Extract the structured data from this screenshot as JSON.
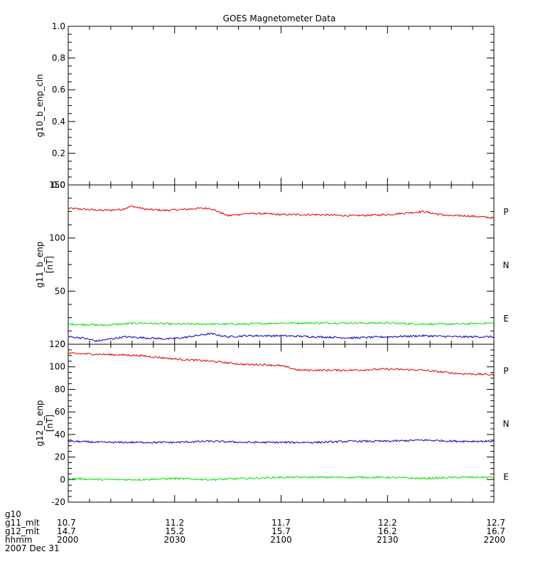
{
  "title": "GOES Magnetometer Data",
  "colors": {
    "P": "#e00000",
    "N": "#00e000",
    "E": "#0000c0",
    "axis": "#000000"
  },
  "chart_data": [
    {
      "type": "line",
      "ylabel": "g10_b_enp_cln",
      "yunit": "",
      "ylim": [
        0.0,
        1.0
      ],
      "yticks": [
        "0.0",
        "0.2",
        "0.4",
        "0.6",
        "0.8",
        "1.0"
      ],
      "ytick_values": [
        0.0,
        0.2,
        0.4,
        0.6,
        0.8,
        1.0
      ],
      "xlim": [
        0,
        120
      ],
      "series": []
    },
    {
      "type": "line",
      "ylabel": "g11_b_enp",
      "yunit": "[nT]",
      "ylim": [
        0,
        150
      ],
      "yticks": [
        "0",
        "50",
        "100",
        "150"
      ],
      "ytick_values": [
        0,
        50,
        100,
        150
      ],
      "xlim": [
        0,
        120
      ],
      "series": [
        {
          "name": "P",
          "color": "#e00000",
          "x": [
            0,
            5,
            10,
            15,
            18,
            22,
            27,
            33,
            37,
            40,
            45,
            50,
            55,
            60,
            70,
            80,
            90,
            100,
            105,
            108,
            112,
            120
          ],
          "values": [
            128,
            127,
            126,
            127,
            130,
            127,
            126,
            127,
            128,
            128,
            121,
            123,
            123,
            122,
            122,
            121,
            122,
            125,
            122,
            121,
            121,
            119
          ]
        },
        {
          "name": "N",
          "color": "#00e000",
          "x": [
            0,
            10,
            20,
            30,
            40,
            50,
            60,
            70,
            80,
            90,
            100,
            110,
            120
          ],
          "values": [
            19,
            18,
            20,
            19,
            19,
            19,
            20,
            20,
            20,
            20,
            19,
            19,
            20
          ]
        },
        {
          "name": "E",
          "color": "#0000c0",
          "x": [
            0,
            4,
            8,
            12,
            16,
            22,
            28,
            32,
            36,
            40,
            45,
            50,
            60,
            70,
            80,
            90,
            100,
            110,
            120
          ],
          "values": [
            7,
            6,
            3,
            5,
            7,
            6,
            5,
            6,
            8,
            10,
            7,
            8,
            8,
            7,
            6,
            7,
            8,
            7,
            7
          ]
        }
      ],
      "series_labels": [
        "P",
        "N",
        "E"
      ]
    },
    {
      "type": "line",
      "ylabel": "g12_b_enp",
      "yunit": "[nT]",
      "ylim": [
        -20,
        120
      ],
      "yticks": [
        "-20",
        "0",
        "20",
        "40",
        "60",
        "80",
        "100",
        "120"
      ],
      "ytick_values": [
        -20,
        0,
        20,
        40,
        60,
        80,
        100,
        120
      ],
      "xlim": [
        0,
        120
      ],
      "series": [
        {
          "name": "P",
          "color": "#e00000",
          "x": [
            0,
            10,
            20,
            30,
            40,
            50,
            55,
            60,
            65,
            70,
            80,
            90,
            100,
            110,
            120
          ],
          "values": [
            112,
            111,
            110,
            107,
            105,
            102,
            102,
            101,
            97,
            97,
            97,
            98,
            97,
            94,
            93
          ]
        },
        {
          "name": "N",
          "color": "#00e000",
          "x": [
            0,
            10,
            20,
            30,
            40,
            50,
            60,
            70,
            80,
            90,
            100,
            110,
            120
          ],
          "values": [
            1,
            0,
            0,
            1,
            0,
            1,
            2,
            2,
            2,
            2,
            1,
            2,
            2
          ]
        },
        {
          "name": "E",
          "color": "#0000c0",
          "x": [
            0,
            10,
            20,
            30,
            40,
            50,
            60,
            70,
            80,
            90,
            100,
            110,
            120
          ],
          "values": [
            34,
            33,
            33,
            33,
            34,
            33,
            33,
            33,
            34,
            34,
            35,
            34,
            34
          ]
        }
      ],
      "series_labels": [
        "P",
        "N",
        "E"
      ]
    }
  ],
  "x_axis": {
    "tick_positions": [
      0,
      30,
      60,
      90,
      120
    ],
    "minor_step": 6,
    "rows": [
      {
        "label": "g10",
        "values": [
          "",
          "",
          "",
          "",
          ""
        ]
      },
      {
        "label": "g11_mlt",
        "values": [
          "10.7",
          "11.2",
          "11.7",
          "12.2",
          "12.7"
        ]
      },
      {
        "label": "g12_mlt",
        "values": [
          "14.7",
          "15.2",
          "15.7",
          "16.2",
          "16.7"
        ]
      },
      {
        "label": "hhmm",
        "values": [
          "2000",
          "2030",
          "2100",
          "2130",
          "2200"
        ]
      }
    ],
    "date": "2007 Dec 31"
  }
}
